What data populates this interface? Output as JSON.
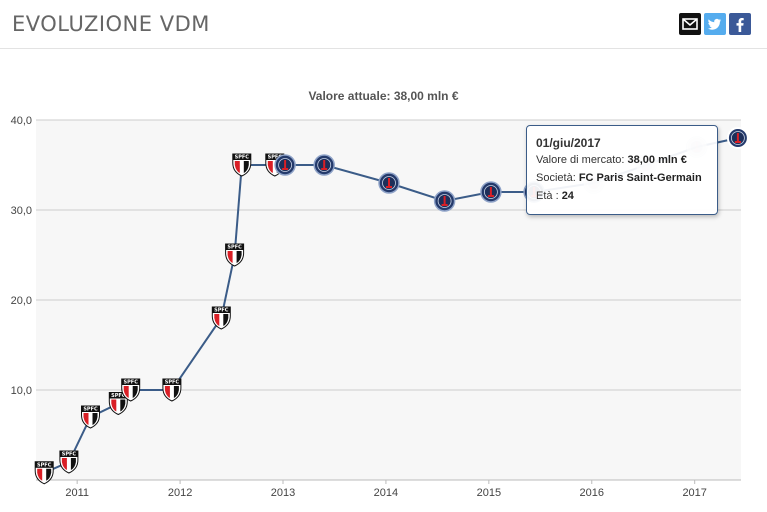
{
  "header": {
    "title": "EVOLUZIONE VDM",
    "share": {
      "mail_icon": "mail-icon",
      "twitter_icon": "twitter-icon",
      "facebook_icon": "facebook-icon"
    }
  },
  "colors": {
    "line": "#3b5c88",
    "grid": "#cccccc",
    "plot_bg": "#f7f7f7",
    "tooltip_border": "#3b5c88",
    "saopaulo_red": "#d91f26",
    "psg_navy": "#243a6b"
  },
  "chart_data": {
    "type": "line",
    "title": "Valore attuale: 38,00 mln €",
    "xlabel": "",
    "ylabel": "",
    "ylim": [
      0,
      40
    ],
    "yticks": [
      "0",
      "10,0",
      "20,0",
      "30,0",
      "40,0"
    ],
    "xlim": [
      2010.6,
      2017.45
    ],
    "xticks": [
      "2011",
      "2012",
      "2013",
      "2014",
      "2015",
      "2016",
      "2017"
    ],
    "grid": true,
    "series": [
      {
        "name": "",
        "points": [
          {
            "x": 2010.68,
            "y": 0.8,
            "club": "SPFC"
          },
          {
            "x": 2010.92,
            "y": 2.0,
            "club": "SPFC"
          },
          {
            "x": 2011.13,
            "y": 7.0,
            "club": "SPFC"
          },
          {
            "x": 2011.4,
            "y": 8.5,
            "club": "SPFC"
          },
          {
            "x": 2011.52,
            "y": 10.0,
            "club": "SPFC"
          },
          {
            "x": 2011.92,
            "y": 10.0,
            "club": "SPFC"
          },
          {
            "x": 2012.4,
            "y": 18.0,
            "club": "SPFC"
          },
          {
            "x": 2012.53,
            "y": 25.0,
            "club": "SPFC"
          },
          {
            "x": 2012.6,
            "y": 35.0,
            "club": "SPFC"
          },
          {
            "x": 2012.92,
            "y": 35.0,
            "club": "SPFC"
          },
          {
            "x": 2013.02,
            "y": 35.0,
            "club": "PSG"
          },
          {
            "x": 2013.4,
            "y": 35.0,
            "club": "PSG"
          },
          {
            "x": 2014.03,
            "y": 33.0,
            "club": "PSG"
          },
          {
            "x": 2014.57,
            "y": 31.0,
            "club": "PSG"
          },
          {
            "x": 2015.02,
            "y": 32.0,
            "club": "PSG"
          },
          {
            "x": 2015.44,
            "y": 32.0,
            "club": "PSG"
          },
          {
            "x": 2016.02,
            "y": 33.0,
            "club": "PSG"
          },
          {
            "x": 2016.53,
            "y": 35.0,
            "club": "PSG"
          },
          {
            "x": 2017.02,
            "y": 37.0,
            "club": "PSG"
          },
          {
            "x": 2017.42,
            "y": 38.0,
            "club": "PSG"
          }
        ]
      }
    ],
    "badge_labels": {
      "SPFC": "SPFC",
      "PSG": ""
    },
    "tooltip": {
      "date": "01/giu/2017",
      "market_value_label": "Valore di mercato:",
      "market_value": "38,00 mln €",
      "club_label": "Società:",
      "club": "FC Paris Saint-Germain",
      "age_label": "Età :",
      "age": "24"
    }
  }
}
